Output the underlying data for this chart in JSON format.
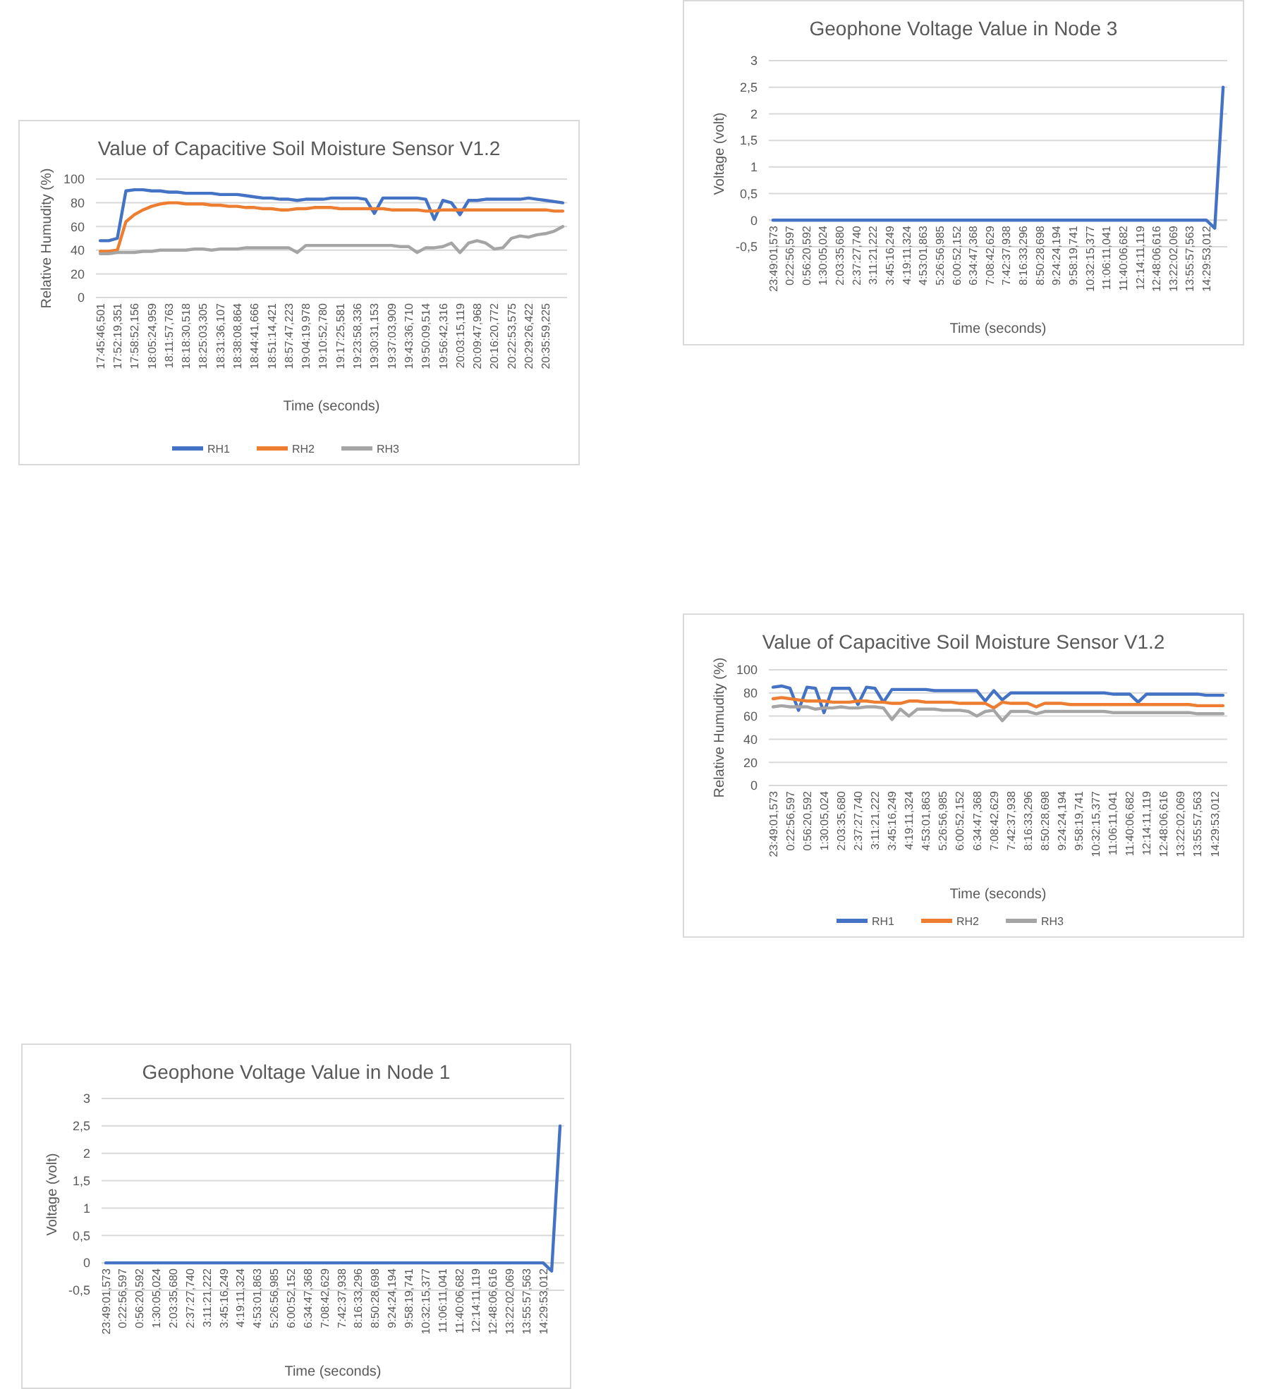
{
  "chart_data": [
    {
      "type": "line",
      "title": "Geophone  Voltage Value in Node 3",
      "xlabel": "Time (seconds)",
      "ylabel": "Voltage (volt)",
      "categories": [
        "23:49:01,573",
        null,
        "0:22:56,597",
        null,
        "0:56:20,592",
        null,
        "1:30:05,024",
        null,
        "2:03:35,680",
        null,
        "2:37:27,740",
        null,
        "3:11:21,222",
        null,
        "3:45:16,249",
        null,
        "4:19:11,324",
        null,
        "4:53:01,863",
        null,
        "5:26:56,985",
        null,
        "6:00:52,152",
        null,
        "6:34:47,368",
        null,
        "7:08:42,629",
        null,
        "7:42:37,938",
        null,
        "8:16:33,296",
        null,
        "8:50:28,698",
        null,
        "9:24:24,194",
        null,
        "9:58:19,741",
        null,
        "10:32:15,377",
        null,
        "11:06:11,041",
        null,
        "11:40:06,682",
        null,
        "12:14:11,119",
        null,
        "12:48:06,616",
        null,
        "13:22:02,069",
        null,
        "13:55:57,563",
        null,
        "14:29:53,012",
        null,
        null
      ],
      "series": [
        {
          "color": "#4472c4",
          "values": [
            0,
            0,
            0,
            0,
            0,
            0,
            0,
            0,
            0,
            0,
            0,
            0,
            0,
            0,
            0,
            0,
            0,
            0,
            0,
            0,
            0,
            0,
            0,
            0,
            0,
            0,
            0,
            0,
            0,
            0,
            0,
            0,
            0,
            0,
            0,
            0,
            0,
            0,
            0,
            0,
            0,
            0,
            0,
            0,
            0,
            0,
            0,
            0,
            0,
            0,
            0,
            0,
            0,
            -0.15,
            2.5
          ]
        }
      ],
      "ylim": [
        -0.5,
        3
      ],
      "yticks": [
        {
          "value": -0.5,
          "label": "-0,5"
        },
        0,
        {
          "value": 0.5,
          "label": "0,5"
        },
        1,
        {
          "value": 1.5,
          "label": "1,5"
        },
        2,
        {
          "value": 2.5,
          "label": "2,5"
        },
        3
      ],
      "grid": "y",
      "legend": false
    },
    {
      "type": "line",
      "title": "Value of Capacitive Soil Moisture Sensor V1.2",
      "xlabel": "Time (seconds)",
      "ylabel": "Relative Humudity (%)",
      "categories": [
        "17:45:46,501",
        null,
        "17:52:19,351",
        null,
        "17:58:52,156",
        null,
        "18:05:24,959",
        null,
        "18:11:57,763",
        null,
        "18:18:30,518",
        null,
        "18:25:03,305",
        null,
        "18:31:36,107",
        null,
        "18:38:08,864",
        null,
        "18:44:41,666",
        null,
        "18:51:14,421",
        null,
        "18:57:47,223",
        null,
        "19:04:19,978",
        null,
        "19:10:52,780",
        null,
        "19:17:25,581",
        null,
        "19:23:58,336",
        null,
        "19:30:31,153",
        null,
        "19:37:03,909",
        null,
        "19:43:36,710",
        null,
        "19:50:09,514",
        null,
        "19:56:42,316",
        null,
        "20:03:15,119",
        null,
        "20:09:47,968",
        null,
        "20:16:20,772",
        null,
        "20:22:53,575",
        null,
        "20:29:26,422",
        null,
        "20:35:59,225",
        null,
        null
      ],
      "series": [
        {
          "name": "RH1",
          "color": "#4472c4",
          "values": [
            48,
            48,
            50,
            90,
            91,
            91,
            90,
            90,
            89,
            89,
            88,
            88,
            88,
            88,
            87,
            87,
            87,
            86,
            85,
            84,
            84,
            83,
            83,
            82,
            83,
            83,
            83,
            84,
            84,
            84,
            84,
            83,
            71,
            84,
            84,
            84,
            84,
            84,
            83,
            66,
            82,
            80,
            70,
            82,
            82,
            83,
            83,
            83,
            83,
            83,
            84,
            83,
            82,
            81,
            80
          ]
        },
        {
          "name": "RH2",
          "color": "#ed7d31",
          "values": [
            39,
            39,
            40,
            64,
            70,
            74,
            77,
            79,
            80,
            80,
            79,
            79,
            79,
            78,
            78,
            77,
            77,
            76,
            76,
            75,
            75,
            74,
            74,
            75,
            75,
            76,
            76,
            76,
            75,
            75,
            75,
            75,
            75,
            75,
            74,
            74,
            74,
            74,
            73,
            73,
            74,
            74,
            74,
            74,
            74,
            74,
            74,
            74,
            74,
            74,
            74,
            74,
            74,
            73,
            73
          ]
        },
        {
          "name": "RH3",
          "color": "#a5a5a5",
          "values": [
            37,
            37,
            38,
            38,
            38,
            39,
            39,
            40,
            40,
            40,
            40,
            41,
            41,
            40,
            41,
            41,
            41,
            42,
            42,
            42,
            42,
            42,
            42,
            38,
            44,
            44,
            44,
            44,
            44,
            44,
            44,
            44,
            44,
            44,
            44,
            43,
            43,
            38,
            42,
            42,
            43,
            46,
            38,
            46,
            48,
            46,
            41,
            42,
            50,
            52,
            51,
            53,
            54,
            56,
            60
          ]
        }
      ],
      "ylim": [
        0,
        100
      ],
      "yticks": [
        0,
        20,
        40,
        60,
        80,
        100
      ],
      "grid": "y",
      "legend": "bottom"
    },
    {
      "type": "line",
      "title": "Value of Capacitive Soil Moisture Sensor V1.2",
      "xlabel": "Time (seconds)",
      "ylabel": "Relative Humudity (%)",
      "categories": [
        "23:49:01,573",
        null,
        "0:22:56,597",
        null,
        "0:56:20,592",
        null,
        "1:30:05,024",
        null,
        "2:03:35,680",
        null,
        "2:37:27,740",
        null,
        "3:11:21,222",
        null,
        "3:45:16,249",
        null,
        "4:19:11,324",
        null,
        "4:53:01,863",
        null,
        "5:26:56,985",
        null,
        "6:00:52,152",
        null,
        "6:34:47,368",
        null,
        "7:08:42,629",
        null,
        "7:42:37,938",
        null,
        "8:16:33,296",
        null,
        "8:50:28,698",
        null,
        "9:24:24,194",
        null,
        "9:58:19,741",
        null,
        "10:32:15,377",
        null,
        "11:06:11,041",
        null,
        "11:40:06,682",
        null,
        "12:14:11,119",
        null,
        "12:48:06,616",
        null,
        "13:22:02,069",
        null,
        "13:55:57,563",
        null,
        "14:29:53,012",
        null
      ],
      "series": [
        {
          "name": "RH1",
          "color": "#4472c4",
          "values": [
            85,
            86,
            84,
            65,
            85,
            84,
            63,
            84,
            84,
            84,
            70,
            85,
            84,
            72,
            83,
            83,
            83,
            83,
            83,
            82,
            82,
            82,
            82,
            82,
            82,
            73,
            82,
            74,
            80,
            80,
            80,
            80,
            80,
            80,
            80,
            80,
            80,
            80,
            80,
            80,
            79,
            79,
            79,
            72,
            79,
            79,
            79,
            79,
            79,
            79,
            79,
            78,
            78,
            78
          ]
        },
        {
          "name": "RH2",
          "color": "#ed7d31",
          "values": [
            75,
            76,
            75,
            74,
            73,
            73,
            73,
            72,
            72,
            72,
            73,
            73,
            72,
            72,
            71,
            71,
            73,
            73,
            72,
            72,
            72,
            72,
            71,
            71,
            71,
            71,
            67,
            72,
            71,
            71,
            71,
            68,
            71,
            71,
            71,
            70,
            70,
            70,
            70,
            70,
            70,
            70,
            70,
            70,
            70,
            70,
            70,
            70,
            70,
            70,
            69,
            69,
            69,
            69
          ]
        },
        {
          "name": "RH3",
          "color": "#a5a5a5",
          "values": [
            68,
            69,
            68,
            68,
            68,
            66,
            67,
            67,
            68,
            67,
            67,
            68,
            68,
            67,
            57,
            66,
            60,
            66,
            66,
            66,
            65,
            65,
            65,
            64,
            60,
            64,
            65,
            56,
            64,
            64,
            64,
            62,
            64,
            64,
            64,
            64,
            64,
            64,
            64,
            64,
            63,
            63,
            63,
            63,
            63,
            63,
            63,
            63,
            63,
            63,
            62,
            62,
            62,
            62
          ]
        }
      ],
      "ylim": [
        0,
        100
      ],
      "yticks": [
        0,
        20,
        40,
        60,
        80,
        100
      ],
      "grid": "y",
      "legend": "bottom"
    },
    {
      "type": "line",
      "title": "Geophone  Voltage Value in Node 1",
      "xlabel": "Time (seconds)",
      "ylabel": "Voltage (volt)",
      "categories": [
        "23:49:01,573",
        null,
        "0:22:56,597",
        null,
        "0:56:20,592",
        null,
        "1:30:05,024",
        null,
        "2:03:35,680",
        null,
        "2:37:27,740",
        null,
        "3:11:21,222",
        null,
        "3:45:16,249",
        null,
        "4:19:11,324",
        null,
        "4:53:01,863",
        null,
        "5:26:56,985",
        null,
        "6:00:52,152",
        null,
        "6:34:47,368",
        null,
        "7:08:42,629",
        null,
        "7:42:37,938",
        null,
        "8:16:33,296",
        null,
        "8:50:28,698",
        null,
        "9:24:24,194",
        null,
        "9:58:19,741",
        null,
        "10:32:15,377",
        null,
        "11:06:11,041",
        null,
        "11:40:06,682",
        null,
        "12:14:11,119",
        null,
        "12:48:06,616",
        null,
        "13:22:02,069",
        null,
        "13:55:57,563",
        null,
        "14:29:53,012",
        null,
        null
      ],
      "series": [
        {
          "color": "#4472c4",
          "values": [
            0,
            0,
            0,
            0,
            0,
            0,
            0,
            0,
            0,
            0,
            0,
            0,
            0,
            0,
            0,
            0,
            0,
            0,
            0,
            0,
            0,
            0,
            0,
            0,
            0,
            0,
            0,
            0,
            0,
            0,
            0,
            0,
            0,
            0,
            0,
            0,
            0,
            0,
            0,
            0,
            0,
            0,
            0,
            0,
            0,
            0,
            0,
            0,
            0,
            0,
            0,
            0,
            0,
            -0.15,
            2.5
          ]
        }
      ],
      "ylim": [
        -0.5,
        3
      ],
      "yticks": [
        {
          "value": -0.5,
          "label": "-0,5"
        },
        0,
        {
          "value": 0.5,
          "label": "0,5"
        },
        1,
        {
          "value": 1.5,
          "label": "1,5"
        },
        2,
        {
          "value": 2.5,
          "label": "2,5"
        },
        3
      ],
      "grid": "y",
      "legend": false
    }
  ]
}
